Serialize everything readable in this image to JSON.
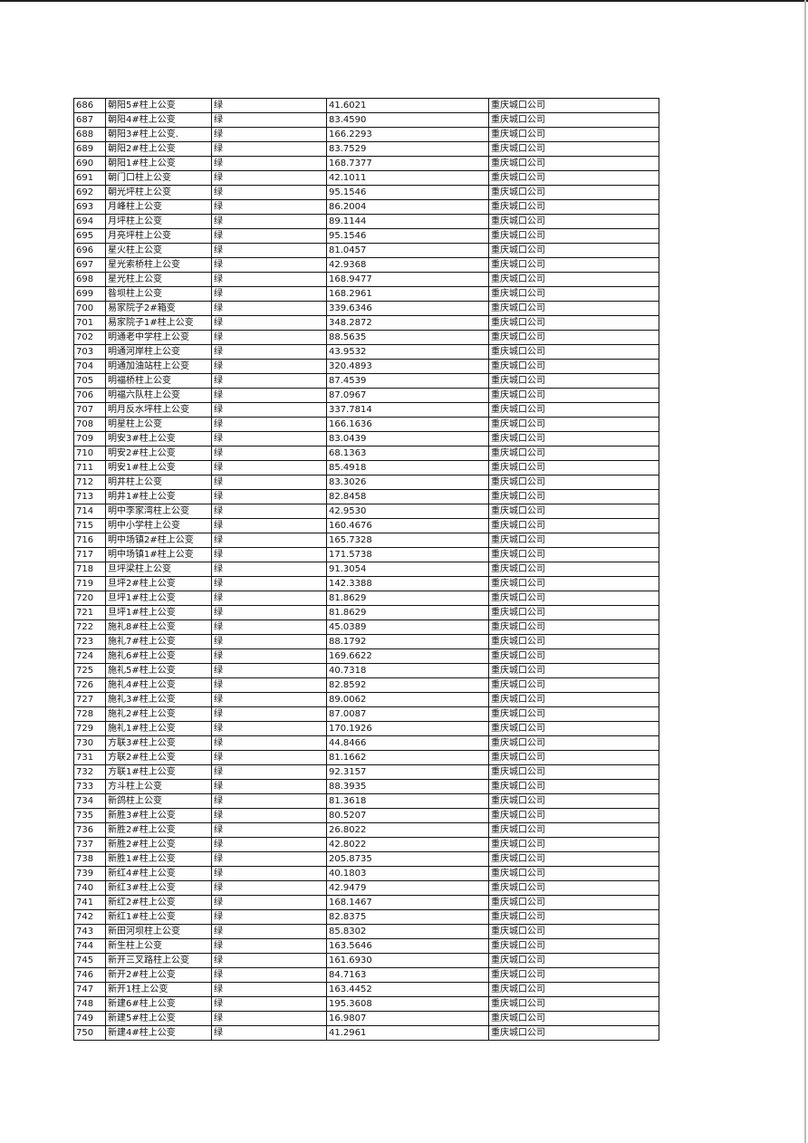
{
  "rows": [
    [
      "686",
      "朝阳5#柱上公变",
      "绿",
      "41.6021",
      "重庆城口公司"
    ],
    [
      "687",
      "朝阳4#柱上公变",
      "绿",
      "83.4590",
      "重庆城口公司"
    ],
    [
      "688",
      "朝阳3#柱上公变.",
      "绿",
      "166.2293",
      "重庆城口公司"
    ],
    [
      "689",
      "朝阳2#柱上公变",
      "绿",
      "83.7529",
      "重庆城口公司"
    ],
    [
      "690",
      "朝阳1#柱上公变",
      "绿",
      "168.7377",
      "重庆城口公司"
    ],
    [
      "691",
      "朝门口柱上公变",
      "绿",
      "42.1011",
      "重庆城口公司"
    ],
    [
      "692",
      "朝光坪柱上公变",
      "绿",
      "95.1546",
      "重庆城口公司"
    ],
    [
      "693",
      "月峰柱上公变",
      "绿",
      "86.2004",
      "重庆城口公司"
    ],
    [
      "694",
      "月坪柱上公变",
      "绿",
      "89.1144",
      "重庆城口公司"
    ],
    [
      "695",
      "月亮坪柱上公变",
      "绿",
      "95.1546",
      "重庆城口公司"
    ],
    [
      "696",
      "星火柱上公变",
      "绿",
      "81.0457",
      "重庆城口公司"
    ],
    [
      "697",
      "星光索桥柱上公变",
      "绿",
      "42.9368",
      "重庆城口公司"
    ],
    [
      "698",
      "星光柱上公变",
      "绿",
      "168.9477",
      "重庆城口公司"
    ],
    [
      "699",
      "昝坝柱上公变",
      "绿",
      "168.2961",
      "重庆城口公司"
    ],
    [
      "700",
      "易家院子2#箱变",
      "绿",
      "339.6346",
      "重庆城口公司"
    ],
    [
      "701",
      "易家院子1#柱上公变",
      "绿",
      "348.2872",
      "重庆城口公司"
    ],
    [
      "702",
      "明通老中学柱上公变",
      "绿",
      "88.5635",
      "重庆城口公司"
    ],
    [
      "703",
      "明通河岸柱上公变",
      "绿",
      "43.9532",
      "重庆城口公司"
    ],
    [
      "704",
      "明通加油站柱上公变",
      "绿",
      "320.4893",
      "重庆城口公司"
    ],
    [
      "705",
      "明福桥柱上公变",
      "绿",
      "87.4539",
      "重庆城口公司"
    ],
    [
      "706",
      "明福六队柱上公变",
      "绿",
      "87.0967",
      "重庆城口公司"
    ],
    [
      "707",
      "明月反水坪柱上公变",
      "绿",
      "337.7814",
      "重庆城口公司"
    ],
    [
      "708",
      "明星柱上公变",
      "绿",
      "166.1636",
      "重庆城口公司"
    ],
    [
      "709",
      "明安3#柱上公变",
      "绿",
      "83.0439",
      "重庆城口公司"
    ],
    [
      "710",
      "明安2#柱上公变",
      "绿",
      "68.1363",
      "重庆城口公司"
    ],
    [
      "711",
      "明安1#柱上公变",
      "绿",
      "85.4918",
      "重庆城口公司"
    ],
    [
      "712",
      "明井柱上公变",
      "绿",
      "83.3026",
      "重庆城口公司"
    ],
    [
      "713",
      "明井1#柱上公变",
      "绿",
      "82.8458",
      "重庆城口公司"
    ],
    [
      "714",
      "明中李家湾柱上公变",
      "绿",
      "42.9530",
      "重庆城口公司"
    ],
    [
      "715",
      "明中小学柱上公变",
      "绿",
      "160.4676",
      "重庆城口公司"
    ],
    [
      "716",
      "明中场镇2#柱上公变",
      "绿",
      "165.7328",
      "重庆城口公司"
    ],
    [
      "717",
      "明中场镇1#柱上公变",
      "绿",
      "171.5738",
      "重庆城口公司"
    ],
    [
      "718",
      "旦坪梁柱上公变",
      "绿",
      "91.3054",
      "重庆城口公司"
    ],
    [
      "719",
      "旦坪2#柱上公变",
      "绿",
      "142.3388",
      "重庆城口公司"
    ],
    [
      "720",
      "旦坪1#柱上公变",
      "绿",
      "81.8629",
      "重庆城口公司"
    ],
    [
      "721",
      "旦坪1#柱上公变",
      "绿",
      "81.8629",
      "重庆城口公司"
    ],
    [
      "722",
      "施礼8#柱上公变",
      "绿",
      "45.0389",
      "重庆城口公司"
    ],
    [
      "723",
      "施礼7#柱上公变",
      "绿",
      "88.1792",
      "重庆城口公司"
    ],
    [
      "724",
      "施礼6#柱上公变",
      "绿",
      "169.6622",
      "重庆城口公司"
    ],
    [
      "725",
      "施礼5#柱上公变",
      "绿",
      "40.7318",
      "重庆城口公司"
    ],
    [
      "726",
      "施礼4#柱上公变",
      "绿",
      "82.8592",
      "重庆城口公司"
    ],
    [
      "727",
      "施礼3#柱上公变",
      "绿",
      "89.0062",
      "重庆城口公司"
    ],
    [
      "728",
      "施礼2#柱上公变",
      "绿",
      "87.0087",
      "重庆城口公司"
    ],
    [
      "729",
      "施礼1#柱上公变",
      "绿",
      "170.1926",
      "重庆城口公司"
    ],
    [
      "730",
      "方联3#柱上公变",
      "绿",
      "44.8466",
      "重庆城口公司"
    ],
    [
      "731",
      "方联2#柱上公变",
      "绿",
      "81.1662",
      "重庆城口公司"
    ],
    [
      "732",
      "方联1#柱上公变",
      "绿",
      "92.3157",
      "重庆城口公司"
    ],
    [
      "733",
      "方斗柱上公变",
      "绿",
      "88.3935",
      "重庆城口公司"
    ],
    [
      "734",
      "新鸽柱上公变",
      "绿",
      "81.3618",
      "重庆城口公司"
    ],
    [
      "735",
      "新胜3#柱上公变",
      "绿",
      "80.5207",
      "重庆城口公司"
    ],
    [
      "736",
      "新胜2#柱上公变",
      "绿",
      "26.8022",
      "重庆城口公司"
    ],
    [
      "737",
      "新胜2#柱上公变",
      "绿",
      "42.8022",
      "重庆城口公司"
    ],
    [
      "738",
      "新胜1#柱上公变",
      "绿",
      "205.8735",
      "重庆城口公司"
    ],
    [
      "739",
      "新红4#柱上公变",
      "绿",
      "40.1803",
      "重庆城口公司"
    ],
    [
      "740",
      "新红3#柱上公变",
      "绿",
      "42.9479",
      "重庆城口公司"
    ],
    [
      "741",
      "新红2#柱上公变",
      "绿",
      "168.1467",
      "重庆城口公司"
    ],
    [
      "742",
      "新红1#柱上公变",
      "绿",
      "82.8375",
      "重庆城口公司"
    ],
    [
      "743",
      "新田河坝柱上公变",
      "绿",
      "85.8302",
      "重庆城口公司"
    ],
    [
      "744",
      "新生柱上公变",
      "绿",
      "163.5646",
      "重庆城口公司"
    ],
    [
      "745",
      "新开三叉路柱上公变",
      "绿",
      "161.6930",
      "重庆城口公司"
    ],
    [
      "746",
      "新开2#柱上公变",
      "绿",
      "84.7163",
      "重庆城口公司"
    ],
    [
      "747",
      "新开1柱上公变",
      "绿",
      "163.4452",
      "重庆城口公司"
    ],
    [
      "748",
      "新建6#柱上公变",
      "绿",
      "195.3608",
      "重庆城口公司"
    ],
    [
      "749",
      "新建5#柱上公变",
      "绿",
      "16.9807",
      "重庆城口公司"
    ],
    [
      "750",
      "新建4#柱上公变",
      "绿",
      "41.2961",
      "重庆城口公司"
    ]
  ]
}
